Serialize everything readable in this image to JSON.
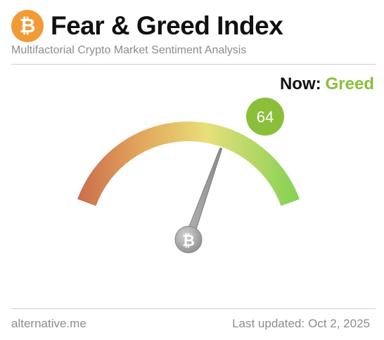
{
  "header": {
    "logo_icon": "bitcoin-icon",
    "logo_glyph": "₿",
    "title": "Fear & Greed Index",
    "subtitle": "Multifactorial Crypto Market Sentiment Analysis"
  },
  "current": {
    "label": "Now:",
    "classification": "Greed",
    "value": 64,
    "value_text": "64",
    "min": 0,
    "max": 100,
    "accent_color": "#8bbf3a"
  },
  "gauge": {
    "hub_icon": "bitcoin-icon",
    "hub_glyph": "₿",
    "colors": [
      "#c8664c",
      "#e3a65a",
      "#e7df7a",
      "#7bd04e"
    ]
  },
  "footer": {
    "source": "alternative.me",
    "updated_label": "Last updated:",
    "updated_date": "Oct 2, 2025"
  }
}
